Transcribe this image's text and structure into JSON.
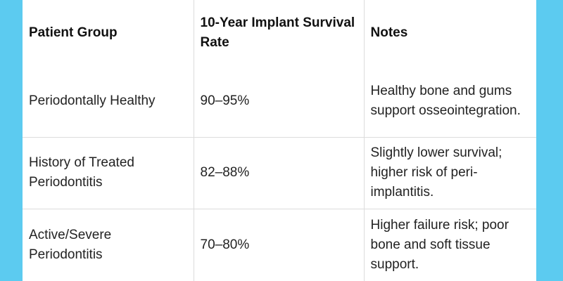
{
  "table": {
    "header": [
      "Patient Group",
      "10-Year Implant Survival Rate",
      "Notes"
    ],
    "rows": [
      [
        "Periodontally Healthy",
        "90–95%",
        "Healthy bone and gums support osseointegration."
      ],
      [
        "History of Treated Periodontitis",
        "82–88%",
        "Slightly lower survival; higher risk of peri-implantitis."
      ],
      [
        "Active/Severe Periodontitis",
        "70–80%",
        "Higher failure risk; poor bone and soft tissue support."
      ]
    ]
  }
}
